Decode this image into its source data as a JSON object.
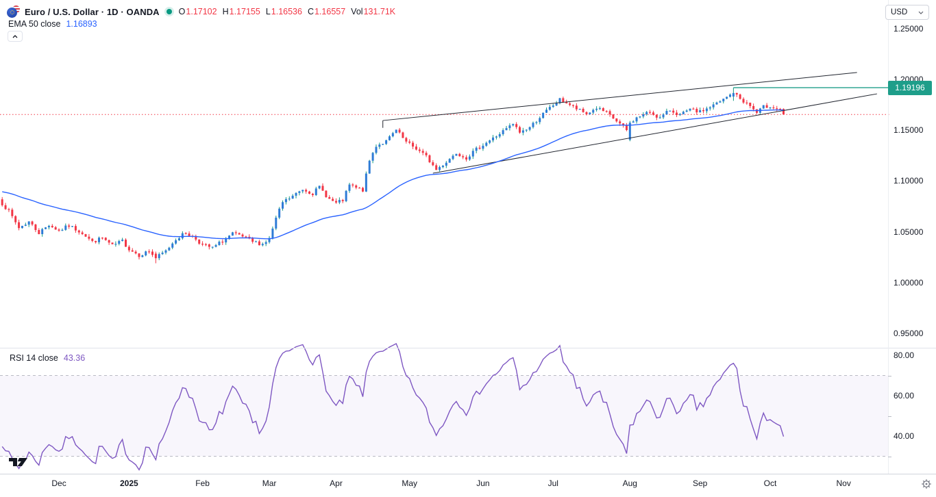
{
  "header": {
    "title_full": "Euro / U.S. Dollar · 1D · OANDA",
    "ohlc": {
      "o_label": "O",
      "o": "1.17102",
      "h_label": "H",
      "h": "1.17155",
      "l_label": "L",
      "l": "1.16536",
      "c_label": "C",
      "c": "1.16557",
      "vol_label": "Vol",
      "vol": "131.71K"
    },
    "unit_selector": "USD"
  },
  "indicators": {
    "ema": {
      "label": "EMA 50 close",
      "value": "1.16893"
    },
    "rsi": {
      "label": "RSI 14 close",
      "value": "43.36"
    }
  },
  "colors": {
    "up_body": "#2e7bd6",
    "up_wick": "#119a80",
    "down_body": "#f23645",
    "down_wick": "#f23645",
    "ema_line": "#2962ff",
    "rsi_line": "#7e57c2",
    "ray": "#1e9e8a",
    "last_price_line": "#f23645",
    "trendline": "#20242e",
    "band_dash": "#b8bac4",
    "band_fill": "rgba(126,87,194,0.05)"
  },
  "chart_data": {
    "type": "candlestick",
    "symbol": "EUR/USD",
    "timeframe": "1D",
    "source": "OANDA",
    "num_candles": 235,
    "first_open": 1.082,
    "last_candle": {
      "open": 1.17102,
      "high": 1.17155,
      "low": 1.16536,
      "close": 1.16557,
      "volume": "131.71K"
    },
    "close_anchors": [
      [
        0,
        1.078
      ],
      [
        2,
        1.07
      ],
      [
        5,
        1.054
      ],
      [
        8,
        1.06
      ],
      [
        11,
        1.049
      ],
      [
        14,
        1.057
      ],
      [
        17,
        1.051
      ],
      [
        20,
        1.056
      ],
      [
        24,
        1.049
      ],
      [
        27,
        1.04
      ],
      [
        30,
        1.044
      ],
      [
        33,
        1.036
      ],
      [
        36,
        1.041
      ],
      [
        38,
        1.033
      ],
      [
        41,
        1.027
      ],
      [
        44,
        1.031
      ],
      [
        46,
        1.024
      ],
      [
        49,
        1.031
      ],
      [
        52,
        1.043
      ],
      [
        55,
        1.049
      ],
      [
        58,
        1.043
      ],
      [
        60,
        1.037
      ],
      [
        63,
        1.034
      ],
      [
        66,
        1.041
      ],
      [
        69,
        1.048
      ],
      [
        72,
        1.045
      ],
      [
        75,
        1.04
      ],
      [
        78,
        1.038
      ],
      [
        80,
        1.043
      ],
      [
        82,
        1.063
      ],
      [
        84,
        1.079
      ],
      [
        87,
        1.085
      ],
      [
        90,
        1.092
      ],
      [
        93,
        1.088
      ],
      [
        95,
        1.094
      ],
      [
        98,
        1.082
      ],
      [
        100,
        1.078
      ],
      [
        102,
        1.081
      ],
      [
        104,
        1.096
      ],
      [
        106,
        1.093
      ],
      [
        108,
        1.091
      ],
      [
        110,
        1.12
      ],
      [
        112,
        1.135
      ],
      [
        115,
        1.139
      ],
      [
        118,
        1.15
      ],
      [
        121,
        1.138
      ],
      [
        124,
        1.132
      ],
      [
        127,
        1.124
      ],
      [
        130,
        1.111
      ],
      [
        133,
        1.119
      ],
      [
        136,
        1.128
      ],
      [
        139,
        1.123
      ],
      [
        142,
        1.131
      ],
      [
        144,
        1.136
      ],
      [
        147,
        1.142
      ],
      [
        150,
        1.149
      ],
      [
        153,
        1.156
      ],
      [
        155,
        1.148
      ],
      [
        158,
        1.153
      ],
      [
        161,
        1.163
      ],
      [
        164,
        1.172
      ],
      [
        167,
        1.18
      ],
      [
        169,
        1.177
      ],
      [
        172,
        1.171
      ],
      [
        175,
        1.166
      ],
      [
        178,
        1.172
      ],
      [
        181,
        1.167
      ],
      [
        184,
        1.159
      ],
      [
        187,
        1.15
      ],
      [
        188,
        1.158
      ],
      [
        191,
        1.164
      ],
      [
        194,
        1.168
      ],
      [
        197,
        1.162
      ],
      [
        200,
        1.17
      ],
      [
        203,
        1.165
      ],
      [
        206,
        1.17
      ],
      [
        209,
        1.168
      ],
      [
        212,
        1.173
      ],
      [
        215,
        1.178
      ],
      [
        219,
        1.187
      ],
      [
        221,
        1.181
      ],
      [
        224,
        1.174
      ],
      [
        226,
        1.167
      ],
      [
        228,
        1.173
      ],
      [
        230,
        1.174
      ],
      [
        232,
        1.171
      ],
      [
        233,
        1.171
      ],
      [
        234,
        1.16557
      ]
    ],
    "pinned_candles": [
      {
        "day": 46,
        "o": 1.0285,
        "h": 1.0305,
        "l": 1.019,
        "c": 1.024
      },
      {
        "day": 188,
        "o": 1.1405,
        "h": 1.1592,
        "l": 1.1392,
        "c": 1.1575
      },
      {
        "day": 219,
        "o": 1.1832,
        "h": 1.19196,
        "l": 1.179,
        "c": 1.1867
      },
      {
        "day": 234,
        "o": 1.17102,
        "h": 1.17155,
        "l": 1.16536,
        "c": 1.16557
      }
    ],
    "indicators": {
      "ema50": {
        "period": 50,
        "last_value": 1.16893
      },
      "rsi14": {
        "period": 14,
        "last_value": 43.36,
        "bands": [
          70,
          30
        ]
      }
    },
    "price_axis": {
      "tick_labels": [
        "1.25000",
        "1.20000",
        "1.15000",
        "1.10000",
        "1.05000",
        "1.00000",
        "0.95000"
      ],
      "tick_values": [
        1.25,
        1.2,
        1.15,
        1.1,
        1.05,
        1.0,
        0.95
      ],
      "current_ray": {
        "label": "1.19196",
        "value": 1.19196,
        "from_day": 219
      },
      "last_price_line": 1.16557
    },
    "rsi_axis": {
      "tick_labels": [
        "80.00",
        "60.00",
        "40.00"
      ],
      "tick_values": [
        80,
        60,
        40
      ],
      "band_values": [
        70,
        50,
        30
      ]
    },
    "time_axis": {
      "months": [
        {
          "label": "Dec",
          "day": 17
        },
        {
          "label": "2025",
          "day": 38,
          "bold": true
        },
        {
          "label": "Feb",
          "day": 60
        },
        {
          "label": "Mar",
          "day": 80
        },
        {
          "label": "Apr",
          "day": 100
        },
        {
          "label": "May",
          "day": 122
        },
        {
          "label": "Jun",
          "day": 144
        },
        {
          "label": "Jul",
          "day": 165
        },
        {
          "label": "Aug",
          "day": 188
        },
        {
          "label": "Sep",
          "day": 209
        },
        {
          "label": "Oct",
          "day": 230
        },
        {
          "label": "Nov",
          "day": 252
        }
      ]
    },
    "drawings": {
      "upper_trendline": {
        "from": [
          114,
          1.1596
        ],
        "to": [
          256,
          1.2069
        ],
        "start_tick_price": 1.1524
      },
      "lower_trendline": {
        "from": [
          129,
          1.1077
        ],
        "to": [
          262,
          1.1859
        ]
      }
    }
  }
}
